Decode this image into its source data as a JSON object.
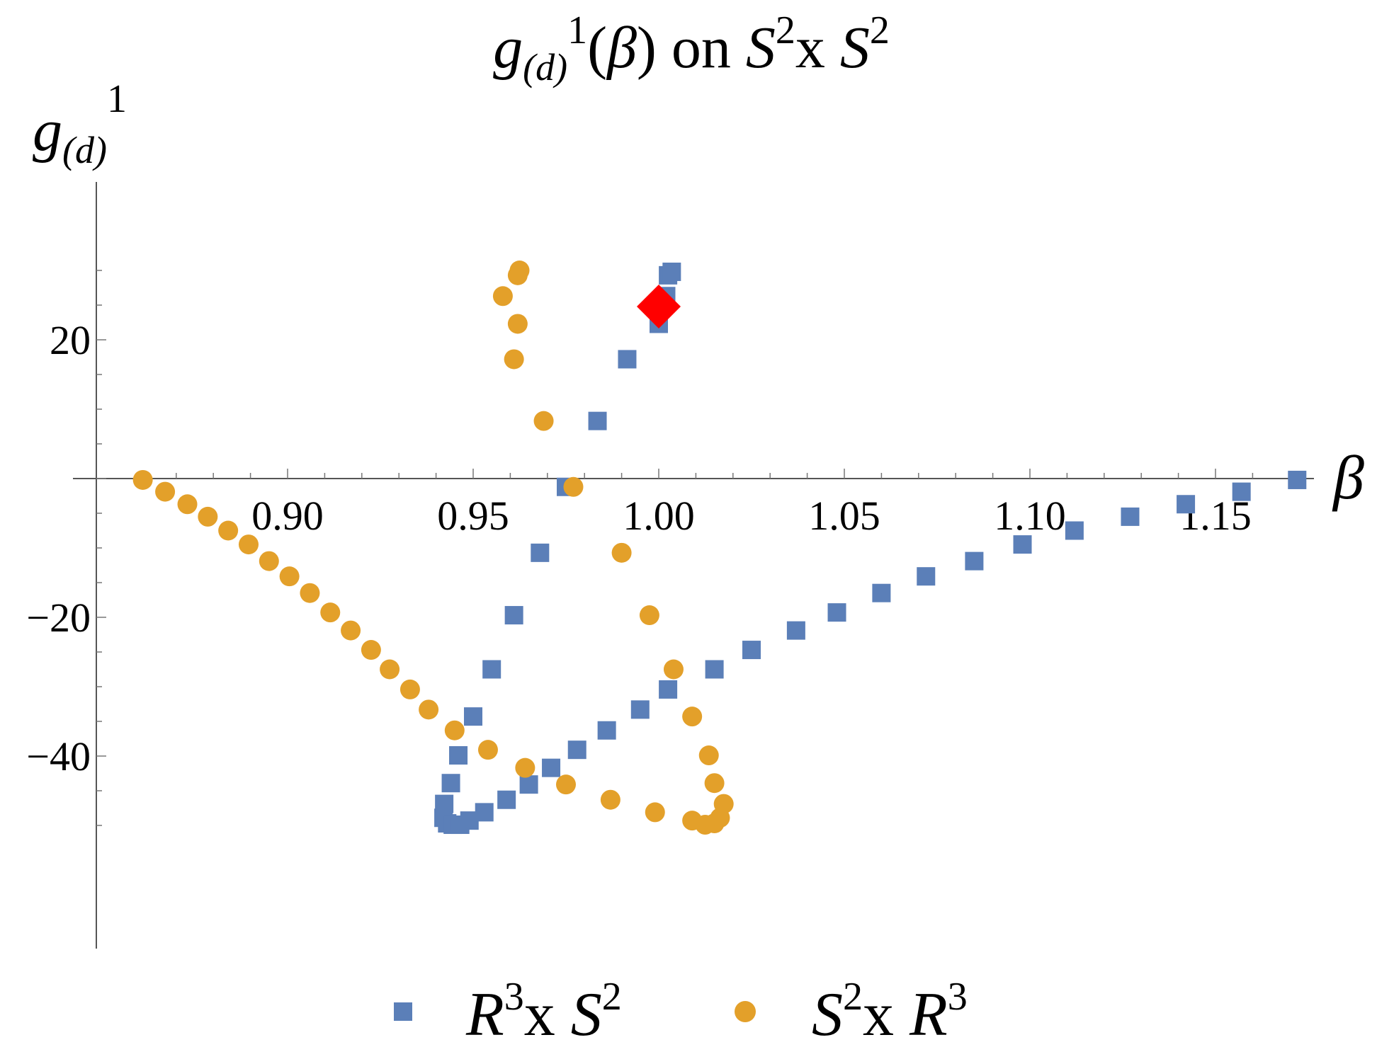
{
  "chart_data": {
    "type": "scatter",
    "title": {
      "g": "g",
      "sub": "(d)",
      "sup": "1",
      "rest_open": "(",
      "beta": "β",
      "rest_close": ") on ",
      "s1": "S",
      "s1_sup": "2",
      "x": "x ",
      "s2": "S",
      "s2_sup": "2"
    },
    "ylabel": {
      "g": "g",
      "sub": "(d)",
      "sup": "1"
    },
    "xlabel": "β",
    "x_range": [
      0.855,
      1.178
    ],
    "y_range": [
      -54.5,
      33
    ],
    "x_ticks": [
      {
        "value": 0.9,
        "label": "0.90"
      },
      {
        "value": 0.95,
        "label": "0.95"
      },
      {
        "value": 1.0,
        "label": "1.00"
      },
      {
        "value": 1.05,
        "label": "1.05"
      },
      {
        "value": 1.1,
        "label": "1.10"
      },
      {
        "value": 1.15,
        "label": "1.15"
      }
    ],
    "y_ticks": [
      {
        "value": 20,
        "label": "20"
      },
      {
        "value": -20,
        "label": "−20"
      },
      {
        "value": -40,
        "label": "−40"
      }
    ],
    "series": [
      {
        "name": "R3xS2",
        "marker": "square",
        "color": "#5B7FB8",
        "points": [
          [
            0.942,
            -48.9
          ],
          [
            0.9422,
            -46.9
          ],
          [
            0.943,
            -49.7
          ],
          [
            0.944,
            -43.9
          ],
          [
            0.9445,
            -49.9
          ],
          [
            0.946,
            -39.9
          ],
          [
            0.9465,
            -49.9
          ],
          [
            0.949,
            -49.3
          ],
          [
            0.95,
            -34.3
          ],
          [
            0.953,
            -48.1
          ],
          [
            0.955,
            -27.5
          ],
          [
            0.959,
            -46.3
          ],
          [
            0.961,
            -19.7
          ],
          [
            0.965,
            -44.1
          ],
          [
            0.968,
            -10.7
          ],
          [
            0.971,
            -41.7
          ],
          [
            0.975,
            -1.2
          ],
          [
            0.978,
            -39.1
          ],
          [
            0.9835,
            8.3
          ],
          [
            0.986,
            -36.3
          ],
          [
            0.9915,
            17.2
          ],
          [
            0.995,
            -33.3
          ],
          [
            1.0,
            22.3
          ],
          [
            1.002,
            26.3
          ],
          [
            1.0025,
            29.3
          ],
          [
            1.0035,
            29.8
          ],
          [
            1.0025,
            -30.4
          ],
          [
            1.015,
            -27.5
          ],
          [
            1.025,
            -24.7
          ],
          [
            1.037,
            -21.9
          ],
          [
            1.048,
            -19.3
          ],
          [
            1.06,
            -16.5
          ],
          [
            1.072,
            -14.1
          ],
          [
            1.085,
            -11.9
          ],
          [
            1.098,
            -9.5
          ],
          [
            1.112,
            -7.5
          ],
          [
            1.127,
            -5.5
          ],
          [
            1.142,
            -3.7
          ],
          [
            1.157,
            -1.9
          ],
          [
            1.172,
            -0.2
          ]
        ]
      },
      {
        "name": "S2xR3",
        "marker": "circle",
        "color": "#E3A02A",
        "points": [
          [
            0.861,
            -0.2
          ],
          [
            0.867,
            -1.9
          ],
          [
            0.873,
            -3.7
          ],
          [
            0.8785,
            -5.5
          ],
          [
            0.884,
            -7.5
          ],
          [
            0.8895,
            -9.5
          ],
          [
            0.895,
            -11.9
          ],
          [
            0.9005,
            -14.1
          ],
          [
            0.906,
            -16.5
          ],
          [
            0.9115,
            -19.3
          ],
          [
            0.917,
            -21.9
          ],
          [
            0.9225,
            -24.7
          ],
          [
            0.9275,
            -27.5
          ],
          [
            0.933,
            -30.4
          ],
          [
            0.938,
            -33.3
          ],
          [
            0.945,
            -36.3
          ],
          [
            0.954,
            -39.1
          ],
          [
            0.964,
            -41.7
          ],
          [
            0.975,
            -44.1
          ],
          [
            0.987,
            -46.3
          ],
          [
            0.999,
            -48.1
          ],
          [
            1.009,
            -49.3
          ],
          [
            1.0125,
            -49.9
          ],
          [
            1.015,
            -49.7
          ],
          [
            1.0165,
            -48.9
          ],
          [
            1.0175,
            -46.9
          ],
          [
            1.015,
            -43.9
          ],
          [
            1.0135,
            -39.9
          ],
          [
            1.009,
            -34.3
          ],
          [
            1.004,
            -27.5
          ],
          [
            0.9975,
            -19.7
          ],
          [
            0.99,
            -10.7
          ],
          [
            0.977,
            -1.2
          ],
          [
            0.969,
            8.3
          ],
          [
            0.961,
            17.2
          ],
          [
            0.962,
            22.3
          ],
          [
            0.958,
            26.3
          ],
          [
            0.962,
            29.3
          ],
          [
            0.9625,
            30.0
          ]
        ]
      }
    ],
    "highlight": {
      "marker": "diamond",
      "color": "#FF0000",
      "x": 1.0,
      "y": 24.8
    },
    "legend": {
      "placement": "bottom",
      "entries": [
        {
          "base1": "R",
          "sup1": "3",
          "mid": "x ",
          "base2": "S",
          "sup2": "2",
          "marker": "square",
          "color": "#5B7FB8"
        },
        {
          "base1": "S",
          "sup1": "2",
          "mid": "x ",
          "base2": "R",
          "sup2": "3",
          "marker": "circle",
          "color": "#E3A02A"
        }
      ]
    },
    "grid": false
  }
}
